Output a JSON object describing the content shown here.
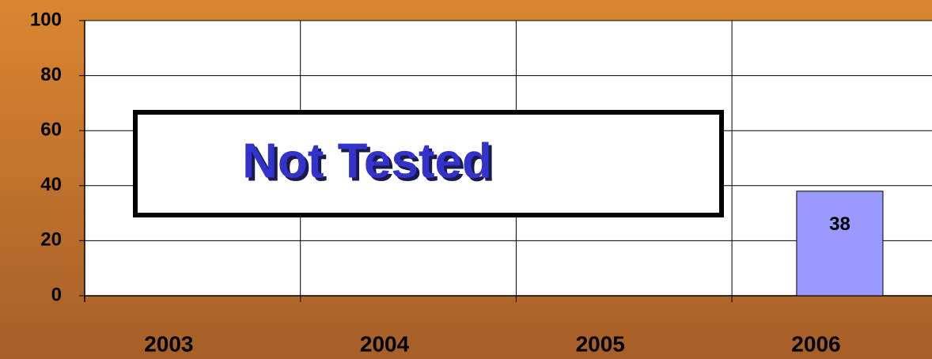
{
  "chart_data": {
    "type": "bar",
    "categories": [
      "2003",
      "2004",
      "2005",
      "2006"
    ],
    "values": [
      null,
      null,
      null,
      38
    ],
    "color": "#9999ff",
    "ylim": [
      0,
      100
    ],
    "yticks": [
      0,
      20,
      40,
      60,
      80,
      100
    ],
    "grid": true,
    "annotation": "Not Tested"
  }
}
